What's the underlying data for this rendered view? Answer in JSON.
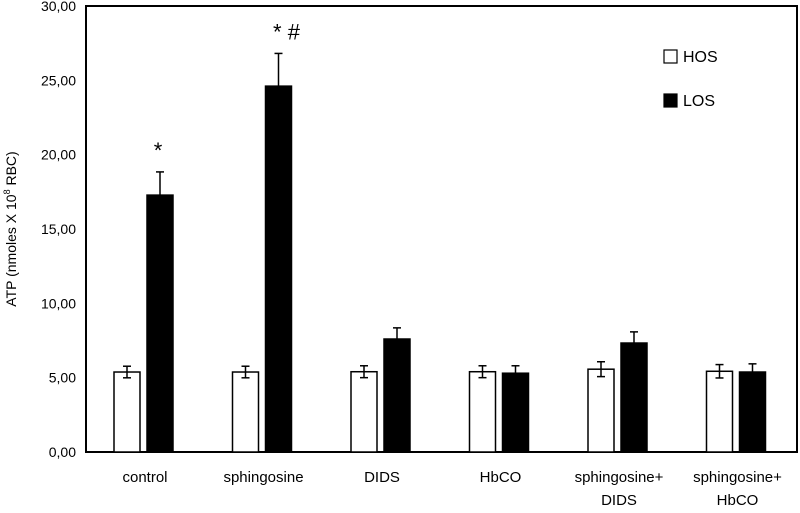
{
  "chart_data": {
    "type": "bar",
    "title": "",
    "xlabel": "",
    "ylabel": "ATP (nmoles X 10",
    "ylabel_sup": "8",
    "ylabel_tail": " RBC)",
    "ylim": [
      0,
      30
    ],
    "yticks": [
      "0,00",
      "5,00",
      "10,00",
      "15,00",
      "20,00",
      "25,00",
      "30,00"
    ],
    "ytick_values": [
      0,
      5,
      10,
      15,
      20,
      25,
      30
    ],
    "grid": false,
    "legend_position": "top-right",
    "categories": [
      [
        "control"
      ],
      [
        "sphingosine"
      ],
      [
        "DIDS"
      ],
      [
        "HbCO"
      ],
      [
        "sphingosine+",
        "DIDS"
      ],
      [
        "sphingosine+",
        "HbCO"
      ]
    ],
    "series": [
      {
        "name": "HOS",
        "color": "#ffffff",
        "values": [
          5.38,
          5.38,
          5.4,
          5.4,
          5.57,
          5.43
        ],
        "errors": [
          0.39,
          0.39,
          0.4,
          0.4,
          0.5,
          0.45
        ]
      },
      {
        "name": "LOS",
        "color": "#000000",
        "values": [
          17.28,
          24.61,
          7.6,
          5.3,
          7.33,
          5.38
        ],
        "errors": [
          1.56,
          2.2,
          0.75,
          0.5,
          0.75,
          0.55
        ]
      }
    ],
    "annotations": [
      {
        "category": 0,
        "series": 1,
        "text": "*"
      },
      {
        "category": 1,
        "series": 1,
        "text": "* #"
      }
    ]
  }
}
